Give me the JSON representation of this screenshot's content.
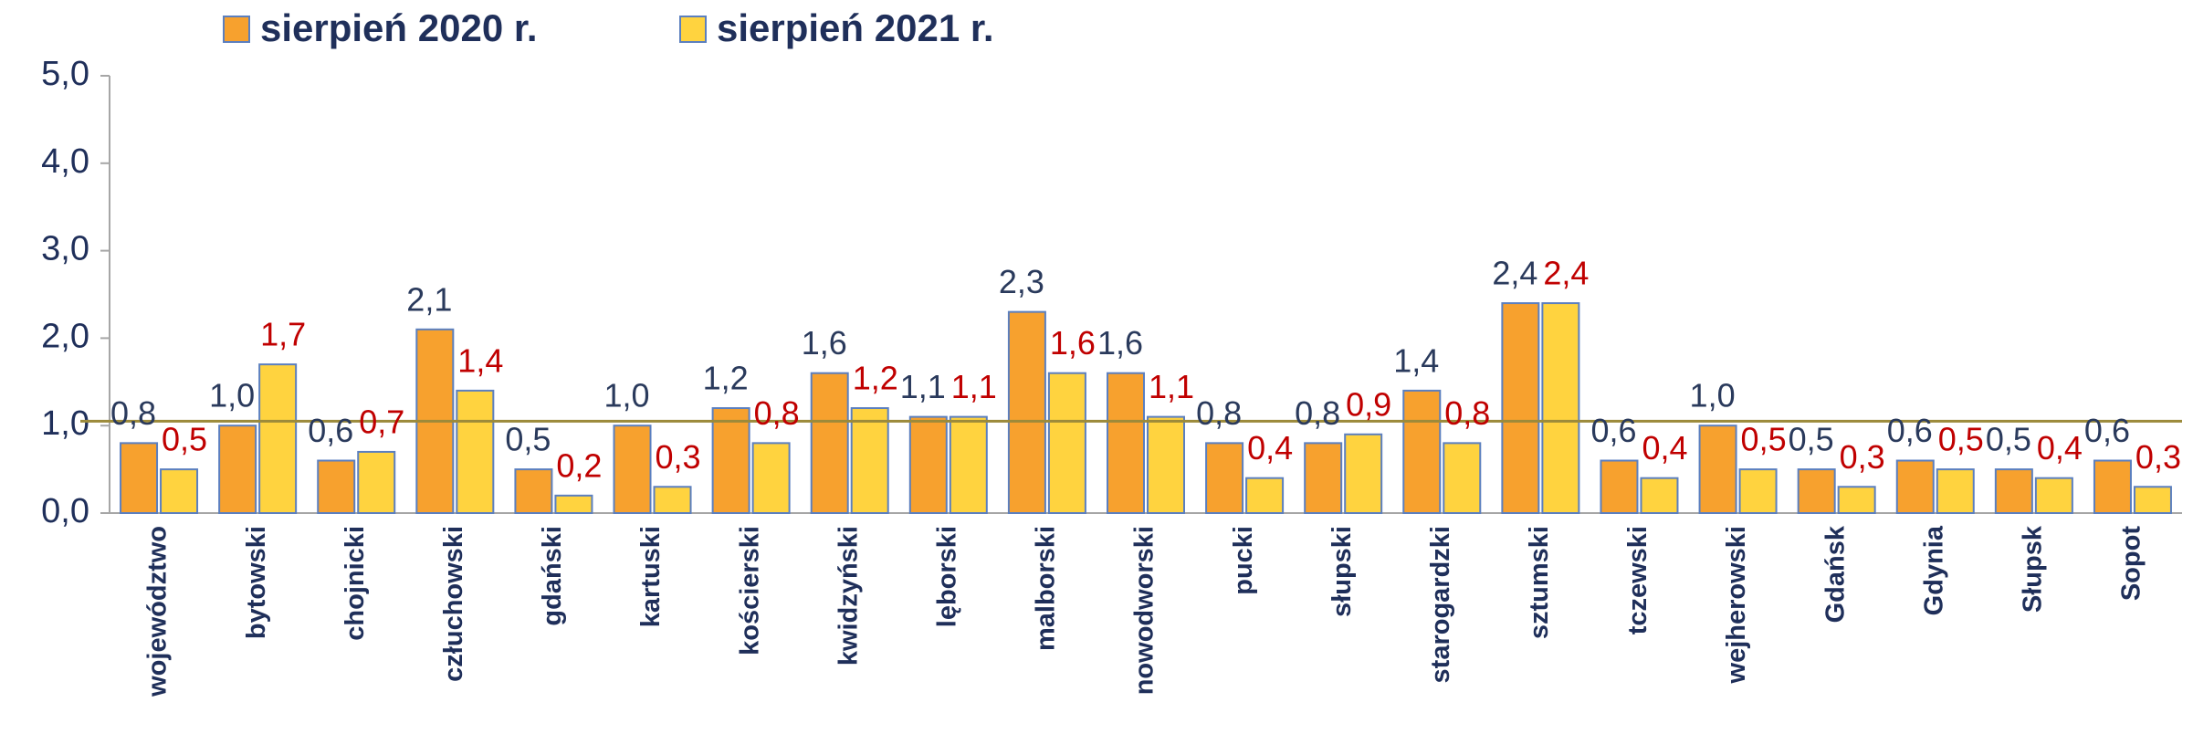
{
  "chart_data": {
    "type": "bar",
    "categories": [
      "województwo",
      "bytowski",
      "chojnicki",
      "człuchowski",
      "gdański",
      "kartuski",
      "kościerski",
      "kwidzyński",
      "lęborski",
      "malborski",
      "nowodworski",
      "pucki",
      "słupski",
      "starogardzki",
      "sztumski",
      "tczewski",
      "wejherowski",
      "Gdańsk",
      "Gdynia",
      "Słupsk",
      "Sopot"
    ],
    "series": [
      {
        "name": "sierpień 2020 r.",
        "color": "#f7a12e",
        "label_color": "#2a3a5c",
        "values": [
          0.8,
          1.0,
          0.6,
          2.1,
          0.5,
          1.0,
          1.2,
          1.6,
          1.1,
          2.3,
          1.6,
          0.8,
          0.8,
          1.4,
          2.4,
          0.6,
          1.0,
          0.5,
          0.6,
          0.5,
          0.6
        ],
        "value_labels": [
          "0,8",
          "1,0",
          "0,6",
          "2,1",
          "0,5",
          "1,0",
          "1,2",
          "1,6",
          "1,1",
          "2,3",
          "1,6",
          "0,8",
          "0,8",
          "1,4",
          "2,4",
          "0,6",
          "1,0",
          "0,5",
          "0,6",
          "0,5",
          "0,6"
        ]
      },
      {
        "name": "sierpień 2021 r.",
        "color": "#ffd33f",
        "label_color": "#c00000",
        "values": [
          0.5,
          1.7,
          0.7,
          1.4,
          0.2,
          0.3,
          0.8,
          1.2,
          1.1,
          1.6,
          1.1,
          0.4,
          0.9,
          0.8,
          2.4,
          0.4,
          0.5,
          0.3,
          0.5,
          0.4,
          0.3
        ],
        "value_labels": [
          "0,5",
          "1,7",
          "0,7",
          "1,4",
          "0,2",
          "0,3",
          "0,8",
          "1,2",
          "1,1",
          "1,6",
          "1,1",
          "0,4",
          "0,9",
          "0,8",
          "2,4",
          "0,4",
          "0,5",
          "0,3",
          "0,5",
          "0,4",
          "0,3"
        ]
      }
    ],
    "ylim": [
      0,
      5
    ],
    "yticks": [
      {
        "value": 0,
        "label": "0,0"
      },
      {
        "value": 1,
        "label": "1,0"
      },
      {
        "value": 2,
        "label": "2,0"
      },
      {
        "value": 3,
        "label": "3,0"
      },
      {
        "value": 4,
        "label": "4,0"
      },
      {
        "value": 5,
        "label": "5,0"
      }
    ],
    "reference_line": 1.05,
    "reference_color": "#9c8a3a",
    "grid": false,
    "legend": "top"
  }
}
